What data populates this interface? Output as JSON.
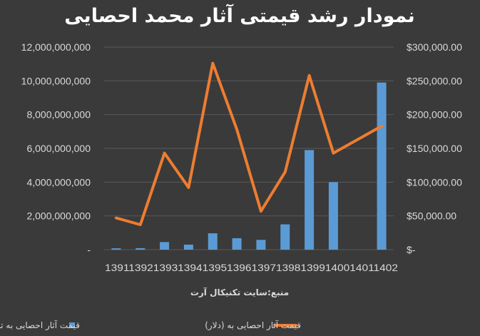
{
  "chart_data": {
    "type": "bar",
    "title": "نمودار رشد قیمتی آثار محمد احصایی",
    "source_note": "منبع:سایت تکنیکال آرت",
    "categories": [
      "1391",
      "1392",
      "1393",
      "1394",
      "1395",
      "1396",
      "1397",
      "1398",
      "1399",
      "1400",
      "1401",
      "1402"
    ],
    "category_label_text": "139113921393139413951396139713981399140014011402",
    "series": [
      {
        "name": "قیمت آثار احصایی به تومان",
        "type": "bar",
        "axis": "left",
        "color": "#5b9bd5",
        "values": [
          80000000,
          90000000,
          450000000,
          300000000,
          970000000,
          680000000,
          580000000,
          1500000000,
          5900000000,
          4000000000,
          0,
          9900000000
        ]
      },
      {
        "name": "قیمت آثار احصایی به (دلار)",
        "type": "line",
        "axis": "right",
        "color": "#ed7d31",
        "values": [
          47000,
          37000,
          143000,
          92000,
          276000,
          178000,
          57000,
          115000,
          258000,
          143000,
          null,
          183000
        ]
      }
    ],
    "y_left": {
      "ylim": [
        0,
        12000000000
      ],
      "ticks": [
        0,
        2000000000,
        4000000000,
        6000000000,
        8000000000,
        10000000000,
        12000000000
      ],
      "tick_labels": [
        "-",
        "2,000,000,000",
        "4,000,000,000",
        "6,000,000,000",
        "8,000,000,000",
        "10,000,000,000",
        "12,000,000,000"
      ]
    },
    "y_right": {
      "ylim": [
        0,
        300000
      ],
      "ticks": [
        0,
        50000,
        100000,
        150000,
        200000,
        250000,
        300000
      ],
      "tick_labels": [
        "$-",
        "$50,000.00",
        "$100,000.00",
        "$150,000.00",
        "$200,000.00",
        "$250,000.00",
        "$300,000.00"
      ]
    },
    "grid": true,
    "legend_position": "bottom"
  }
}
